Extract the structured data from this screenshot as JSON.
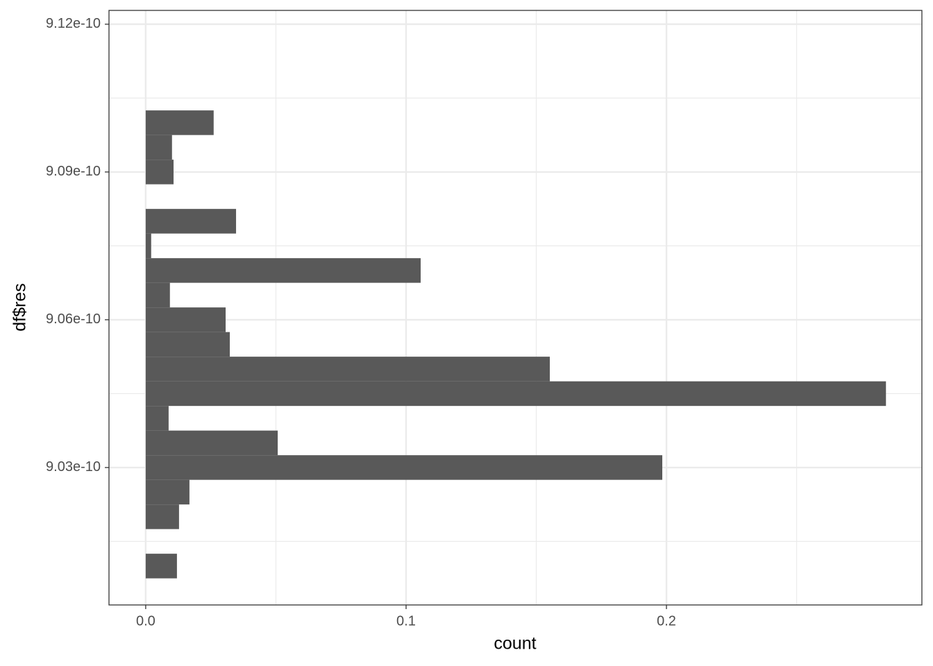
{
  "chart_data": {
    "type": "histogram",
    "orientation": "horizontal",
    "x_label": "count",
    "y_label": "df$res",
    "bins": [
      9.0075e-10,
      9.0125e-10,
      9.0175e-10,
      9.0225e-10,
      9.0275e-10,
      9.0325e-10,
      9.0375e-10,
      9.0425e-10,
      9.0475e-10,
      9.0525e-10,
      9.0575e-10,
      9.0625e-10,
      9.0675e-10,
      9.0725e-10,
      9.0775e-10,
      9.0825e-10,
      9.0875e-10,
      9.0925e-10,
      9.0975e-10,
      9.1025e-10,
      9.1075e-10,
      9.1125e-10,
      9.1175e-10
    ],
    "values": [
      0.012,
      0,
      0.0128,
      0.0168,
      0.1984,
      0.0507,
      0.0088,
      0.2843,
      0.1552,
      0.0323,
      0.0307,
      0.0093,
      0.1056,
      0.0021,
      0.0347,
      0,
      0.0107,
      0.0101,
      0.0261,
      0,
      0,
      0,
      0.0005
    ],
    "color": "#595959",
    "xlim": [
      -0.0141,
      0.2981
    ],
    "xticks": [
      {
        "value": 0,
        "label": "0.0"
      },
      0.1,
      0.2
    ],
    "xminor": [
      0.05,
      0.15,
      0.25
    ],
    "ylim": [
      9.0021e-10,
      9.1228e-10
    ],
    "yticks": [
      {
        "value": 9.03e-10,
        "label": "9.03e-10"
      },
      {
        "value": 9.06e-10,
        "label": "9.06e-10"
      },
      {
        "value": 9.09e-10,
        "label": "9.09e-10"
      },
      {
        "value": 9.12e-10,
        "label": "9.12e-10"
      }
    ],
    "yminor": [
      9.015e-10,
      9.045e-10,
      9.075e-10,
      9.105e-10
    ],
    "grid": true
  }
}
